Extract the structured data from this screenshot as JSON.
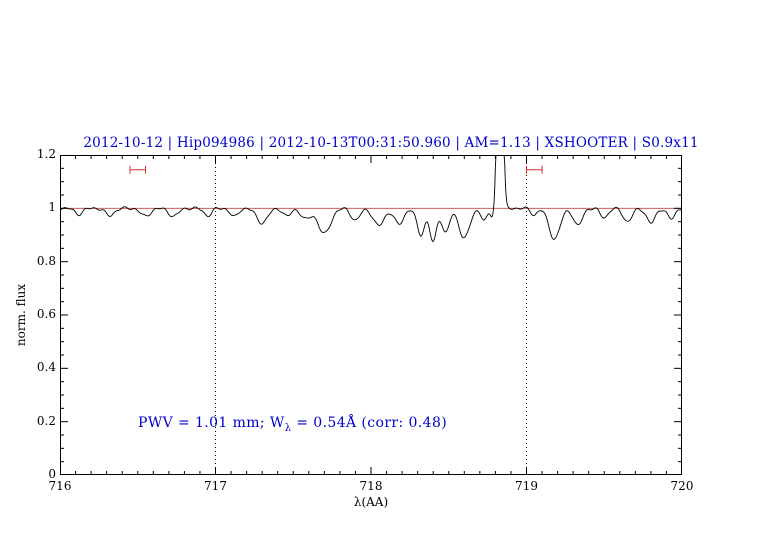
{
  "chart_data": {
    "type": "line",
    "title": "2012-10-12 | Hip094986 | 2012-10-13T00:31:50.960 | AM=1.13 | XSHOOTER | S0.9x11",
    "title_color": "#0000cc",
    "xlabel": "λ(AA)",
    "ylabel": "norm. flux",
    "xlim": [
      716,
      720
    ],
    "ylim": [
      0,
      1.2
    ],
    "x_ticks": [
      716,
      717,
      718,
      719,
      720
    ],
    "x_tick_labels": [
      "716",
      "717",
      "718",
      "719",
      "720"
    ],
    "y_ticks": [
      0,
      0.2,
      0.4,
      0.6,
      0.8,
      1,
      1.2
    ],
    "y_tick_labels": [
      "0",
      "0.2",
      "0.4",
      "0.6",
      "0.8",
      "1",
      "1.2"
    ],
    "grid": "off",
    "dotted_vlines": [
      717,
      719
    ],
    "continuum_line": {
      "y": 1.0,
      "color": "#cc4444"
    },
    "spectrum_color": "#000000",
    "continuum_level": 1.0,
    "absorption_lines": [
      [
        716.12,
        0.022,
        0.025
      ],
      [
        716.32,
        0.028,
        0.028
      ],
      [
        716.55,
        0.03,
        0.03
      ],
      [
        716.73,
        0.03,
        0.03
      ],
      [
        716.95,
        0.028,
        0.024
      ],
      [
        717.12,
        0.032,
        0.025
      ],
      [
        717.3,
        0.055,
        0.035
      ],
      [
        717.46,
        0.03,
        0.025
      ],
      [
        717.58,
        0.04,
        0.03
      ],
      [
        717.7,
        0.095,
        0.04
      ],
      [
        717.9,
        0.045,
        0.028
      ],
      [
        718.05,
        0.065,
        0.035
      ],
      [
        718.18,
        0.06,
        0.03
      ],
      [
        718.32,
        0.1,
        0.025
      ],
      [
        718.4,
        0.125,
        0.022
      ],
      [
        718.48,
        0.09,
        0.024
      ],
      [
        718.6,
        0.11,
        0.035
      ],
      [
        718.73,
        0.045,
        0.02
      ],
      [
        718.78,
        0.03,
        0.012
      ],
      [
        719.05,
        0.025,
        0.02
      ],
      [
        719.18,
        0.115,
        0.035
      ],
      [
        719.33,
        0.065,
        0.028
      ],
      [
        719.5,
        0.035,
        0.025
      ],
      [
        719.65,
        0.05,
        0.028
      ],
      [
        719.8,
        0.055,
        0.028
      ],
      [
        719.93,
        0.04,
        0.024
      ]
    ],
    "emission_spike": {
      "center": 718.83,
      "height": 1.2,
      "sigma": 0.015
    },
    "markers": [
      {
        "x1": 716.45,
        "x2": 716.55,
        "y": 1.145,
        "color": "#cc3333"
      },
      {
        "x1": 719.0,
        "x2": 719.1,
        "y": 1.145,
        "color": "#cc3333"
      }
    ],
    "annotation": {
      "prefix": "PWV = 1.01 mm; W",
      "sub": "λ",
      "suffix": " = 0.54Å (corr: 0.48)",
      "color": "#0000cc"
    }
  }
}
